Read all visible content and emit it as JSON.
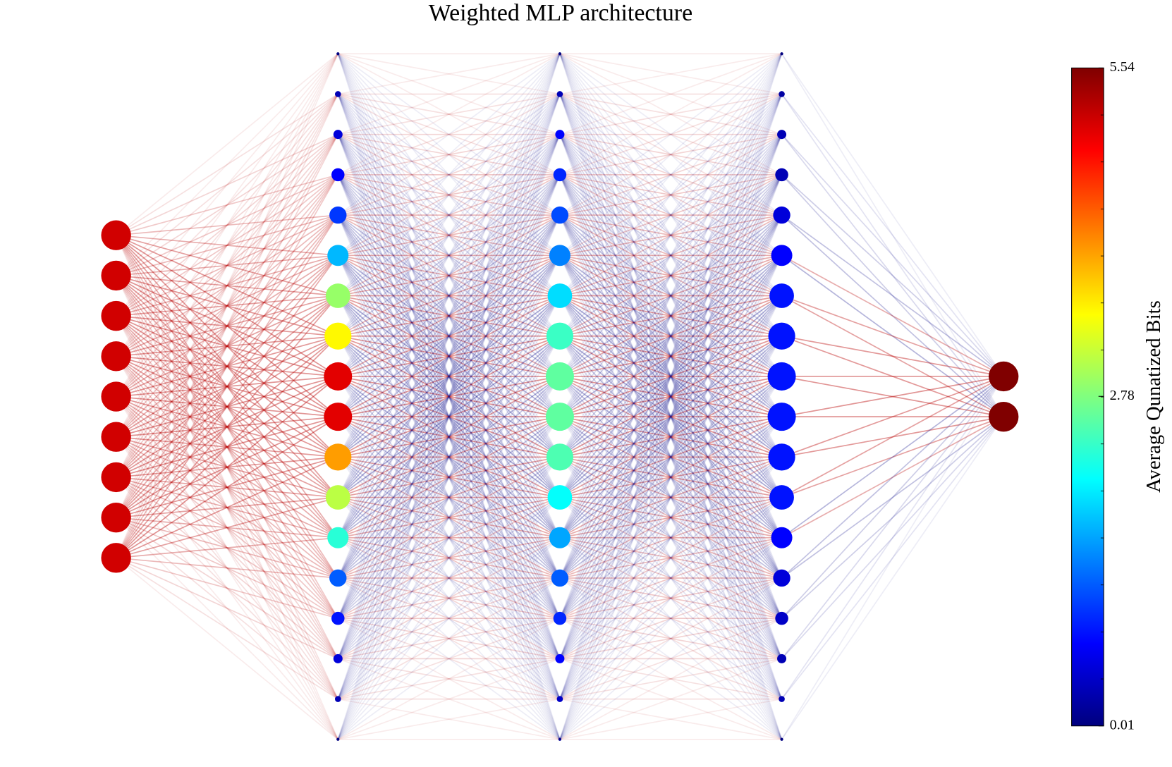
{
  "chart_data": {
    "type": "network",
    "title": "Weighted MLP architecture",
    "colorbar_label": "Average Qunatized Bits",
    "colormap": "jet",
    "clim": [
      0.01,
      5.54
    ],
    "cticks": [
      0.01,
      2.78,
      5.54
    ],
    "layers": [
      {
        "values": [
          5.1,
          5.1,
          5.1,
          5.1,
          5.1,
          5.1,
          5.1,
          5.1,
          5.1
        ]
      },
      {
        "values": [
          0.01,
          0.3,
          0.5,
          0.7,
          1.0,
          1.7,
          2.9,
          3.5,
          5.0,
          5.0,
          4.0,
          3.1,
          2.3,
          1.2,
          0.8,
          0.5,
          0.3,
          0.01
        ]
      },
      {
        "values": [
          0.01,
          0.3,
          0.7,
          0.9,
          1.1,
          1.4,
          1.9,
          2.4,
          2.6,
          2.6,
          2.5,
          2.1,
          1.6,
          1.2,
          0.9,
          0.7,
          0.4,
          0.1
        ]
      },
      {
        "values": [
          0.01,
          0.2,
          0.3,
          0.3,
          0.5,
          0.7,
          0.8,
          0.8,
          0.8,
          0.8,
          0.8,
          0.8,
          0.7,
          0.5,
          0.4,
          0.3,
          0.3,
          0.01
        ]
      },
      {
        "values": [
          5.54,
          5.54
        ]
      }
    ]
  }
}
